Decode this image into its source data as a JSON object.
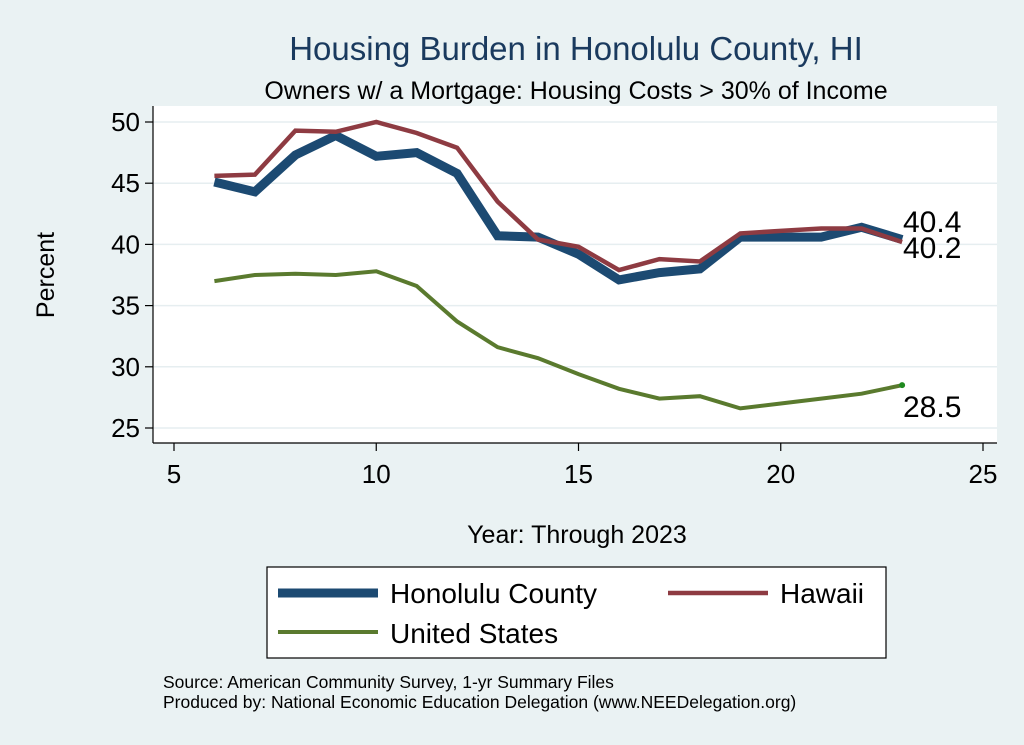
{
  "chart_data": {
    "type": "line",
    "title": "Housing Burden in Honolulu County, HI",
    "subtitle": "Owners w/ a Mortgage: Housing Costs > 30% of Income",
    "xlabel": "Year: Through 2023",
    "ylabel": "Percent",
    "xlim": [
      5,
      25
    ],
    "ylim": [
      25,
      51
    ],
    "xticks": [
      5,
      10,
      15,
      20,
      25
    ],
    "yticks": [
      25,
      30,
      35,
      40,
      45,
      50
    ],
    "grid": true,
    "x": [
      6,
      7,
      8,
      9,
      10,
      11,
      12,
      13,
      14,
      15,
      16,
      17,
      18,
      19,
      20,
      21,
      22,
      23
    ],
    "series": [
      {
        "name": "Honolulu County",
        "color": "#1c4a72",
        "values": [
          45.1,
          44.3,
          47.3,
          48.9,
          47.2,
          47.5,
          45.8,
          40.7,
          40.6,
          39.2,
          37.1,
          37.7,
          38.0,
          40.6,
          40.6,
          40.6,
          41.4,
          40.4
        ],
        "end_label": "40.4"
      },
      {
        "name": "Hawaii",
        "color": "#8e3b42",
        "values": [
          45.6,
          45.7,
          49.3,
          49.2,
          50.0,
          49.1,
          47.9,
          43.5,
          40.4,
          39.8,
          37.9,
          38.8,
          38.6,
          40.9,
          41.1,
          41.3,
          41.3,
          40.2
        ],
        "end_label": "40.2"
      },
      {
        "name": "United States",
        "color": "#5a7a2e",
        "values": [
          37.0,
          37.5,
          37.6,
          37.5,
          37.8,
          36.6,
          33.7,
          31.6,
          30.7,
          29.4,
          28.2,
          27.4,
          27.6,
          26.6,
          27.0,
          27.4,
          27.8,
          28.5
        ],
        "end_label": "28.5"
      }
    ],
    "legend": {
      "placement": "bottom",
      "items": [
        "Honolulu County",
        "Hawaii",
        "United States"
      ]
    }
  },
  "source_note": "Source: American Community Survey, 1-yr Summary Files",
  "producer_note": "Produced by: National Economic Education Delegation (www.NEEDelegation.org)"
}
